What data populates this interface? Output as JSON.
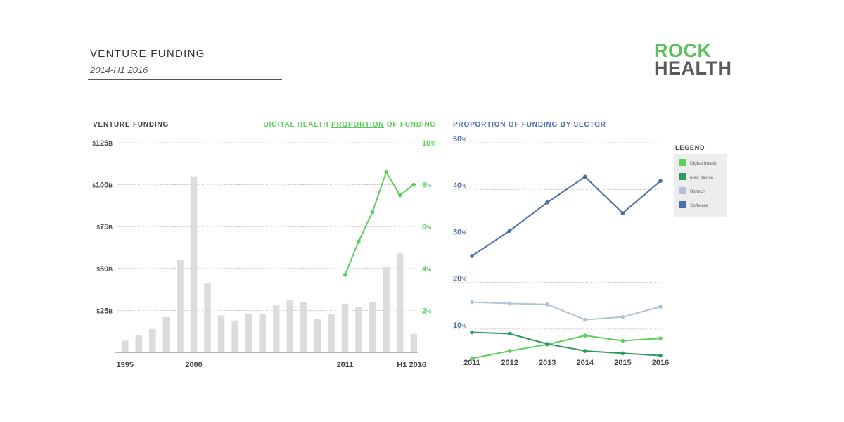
{
  "header": {
    "title": "VENTURE FUNDING",
    "subtitle": "2014-H1 2016"
  },
  "logo": {
    "line1": "ROCK",
    "line2": "HEALTH"
  },
  "colors": {
    "bars": "#dcdcdc",
    "digital_health": "#5ccf5c",
    "med_device": "#2e9a62",
    "biotech": "#b2c0d8",
    "software": "#4a6ea8",
    "axis_text": "#444444",
    "grid": "#aaaaaa"
  },
  "chart_data": [
    {
      "type": "bar",
      "title": "VENTURE FUNDING",
      "x": [
        1995,
        1996,
        1997,
        1998,
        1999,
        2000,
        2001,
        2002,
        2003,
        2004,
        2005,
        2006,
        2007,
        2008,
        2009,
        2010,
        2011,
        2012,
        2013,
        2014,
        2015,
        "H1 2016"
      ],
      "x_tick_labels": [
        "1995",
        "2000",
        "2011",
        "H1 2016"
      ],
      "values": [
        7,
        10,
        14,
        21,
        55,
        105,
        41,
        22,
        19,
        23,
        23,
        28,
        31,
        30,
        20,
        23,
        29,
        27,
        30,
        51,
        59,
        11
      ],
      "ylim": [
        0,
        125
      ],
      "y_ticks": [
        25,
        50,
        75,
        100,
        125
      ],
      "y_tick_labels": [
        "$25B",
        "$50B",
        "$75B",
        "$100B",
        "$125B"
      ],
      "y_tick_parts": [
        {
          "prefix": "$",
          "num": "25",
          "unit": "B"
        },
        {
          "prefix": "$",
          "num": "50",
          "unit": "B"
        },
        {
          "prefix": "$",
          "num": "75",
          "unit": "B"
        },
        {
          "prefix": "$",
          "num": "100",
          "unit": "B"
        },
        {
          "prefix": "$",
          "num": "125",
          "unit": "B"
        }
      ],
      "grid": true
    },
    {
      "type": "line",
      "title": "DIGITAL HEALTH PROPORTION OF FUNDING",
      "title_parts": [
        "DIGITAL HEALTH ",
        "PROPORTION",
        " OF FUNDING"
      ],
      "axis": "right",
      "x": [
        2011,
        2012,
        2013,
        2014,
        2015,
        "H1 2016"
      ],
      "values": [
        3.7,
        5.3,
        6.7,
        8.6,
        7.5,
        8.0
      ],
      "ylim": [
        0,
        10
      ],
      "y_ticks": [
        2,
        4,
        6,
        8,
        10
      ],
      "y_tick_labels": [
        "2%",
        "4%",
        "6%",
        "8%",
        "10%"
      ],
      "y_tick_parts": [
        {
          "num": "2",
          "unit": "%"
        },
        {
          "num": "4",
          "unit": "%"
        },
        {
          "num": "6",
          "unit": "%"
        },
        {
          "num": "8",
          "unit": "%"
        },
        {
          "num": "10",
          "unit": "%"
        }
      ]
    },
    {
      "type": "line",
      "title": "PROPORTION OF FUNDING BY SECTOR",
      "categories": [
        "2011",
        "2012",
        "2013",
        "2014",
        "2015",
        "2016"
      ],
      "ylim": [
        5,
        50
      ],
      "y_ticks": [
        10,
        20,
        30,
        40,
        50
      ],
      "y_tick_labels": [
        "10%",
        "20%",
        "30%",
        "40%",
        "50%"
      ],
      "y_tick_parts": [
        {
          "num": "10",
          "unit": "%"
        },
        {
          "num": "20",
          "unit": "%"
        },
        {
          "num": "30",
          "unit": "%"
        },
        {
          "num": "40",
          "unit": "%"
        },
        {
          "num": "50",
          "unit": "%"
        }
      ],
      "grid": true,
      "legend_title": "LEGEND",
      "legend_position": "right",
      "series": [
        {
          "name": "Digital health",
          "values": [
            3.7,
            5.3,
            6.7,
            8.6,
            7.5,
            8.0
          ]
        },
        {
          "name": "Med device",
          "values": [
            9.3,
            9.0,
            6.8,
            5.3,
            4.8,
            4.3
          ]
        },
        {
          "name": "Biotech",
          "values": [
            15.8,
            15.5,
            15.3,
            12.0,
            12.6,
            14.8
          ]
        },
        {
          "name": "Software",
          "values": [
            25.7,
            31.1,
            37.2,
            42.7,
            34.9,
            41.8
          ]
        }
      ]
    }
  ]
}
